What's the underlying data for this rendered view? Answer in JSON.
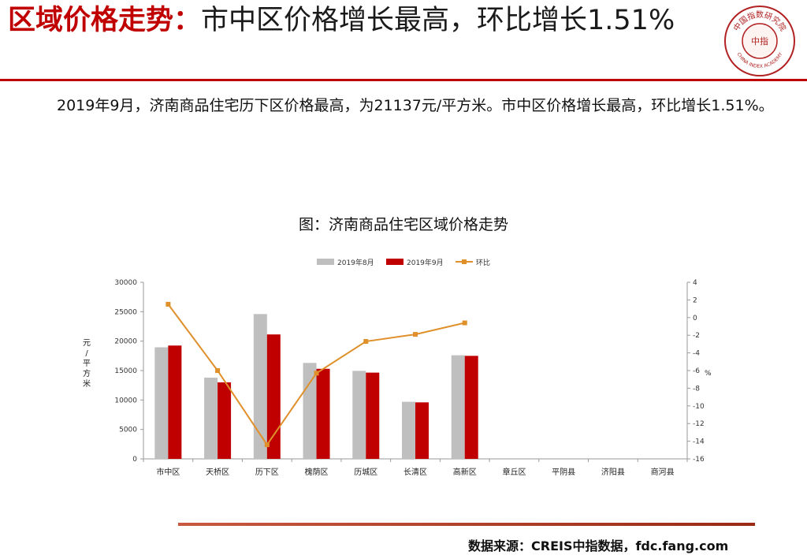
{
  "header": {
    "title_highlight": "区域价格走势：",
    "title_rest": "市中区价格增长最高，环比增长1.51%",
    "logo_center": "中指",
    "logo_arc_top": "中国指数研究院",
    "logo_arc_bottom": "CHINA INDEX ACADEMY"
  },
  "body": {
    "paragraph": "2019年9月，济南商品住宅历下区价格最高，为21137元/平方米。市中区价格增长最高，环比增长1.51%。"
  },
  "chart_title": "图：济南商品住宅区域价格走势",
  "chart_data": {
    "type": "bar",
    "categories": [
      "市中区",
      "天桥区",
      "历下区",
      "槐荫区",
      "历城区",
      "长清区",
      "高新区",
      "章丘区",
      "平阴县",
      "济阳县",
      "商河县"
    ],
    "series": [
      {
        "name": "2019年8月",
        "type": "bar",
        "axis": "left",
        "color": "#bfbfbf",
        "values": [
          18950,
          13800,
          24600,
          16300,
          14950,
          9700,
          17600,
          null,
          null,
          null,
          null
        ]
      },
      {
        "name": "2019年9月",
        "type": "bar",
        "axis": "left",
        "color": "#c00000",
        "values": [
          19250,
          13000,
          21137,
          15300,
          14650,
          9600,
          17500,
          null,
          null,
          null,
          null
        ]
      },
      {
        "name": "环比",
        "type": "line",
        "axis": "right",
        "color": "#e0902a",
        "values": [
          1.51,
          -6.0,
          -14.4,
          -6.3,
          -2.7,
          -1.9,
          -0.6,
          null,
          null,
          null,
          null
        ]
      }
    ],
    "ylabel": "元/平方米",
    "y2label": "%",
    "ylim": [
      0,
      30000
    ],
    "yticks": [
      "0",
      "5000",
      "10000",
      "15000",
      "20000",
      "25000",
      "30000"
    ],
    "y2lim": [
      -16,
      4
    ],
    "y2ticks": [
      "4",
      "2",
      "0",
      "-2",
      "-4",
      "-6",
      "-8",
      "-10",
      "-12",
      "-14",
      "-16"
    ],
    "legend_position": "top",
    "grid": false
  },
  "footer": {
    "source": "数据来源：CREIS中指数据，fdc.fang.com"
  }
}
